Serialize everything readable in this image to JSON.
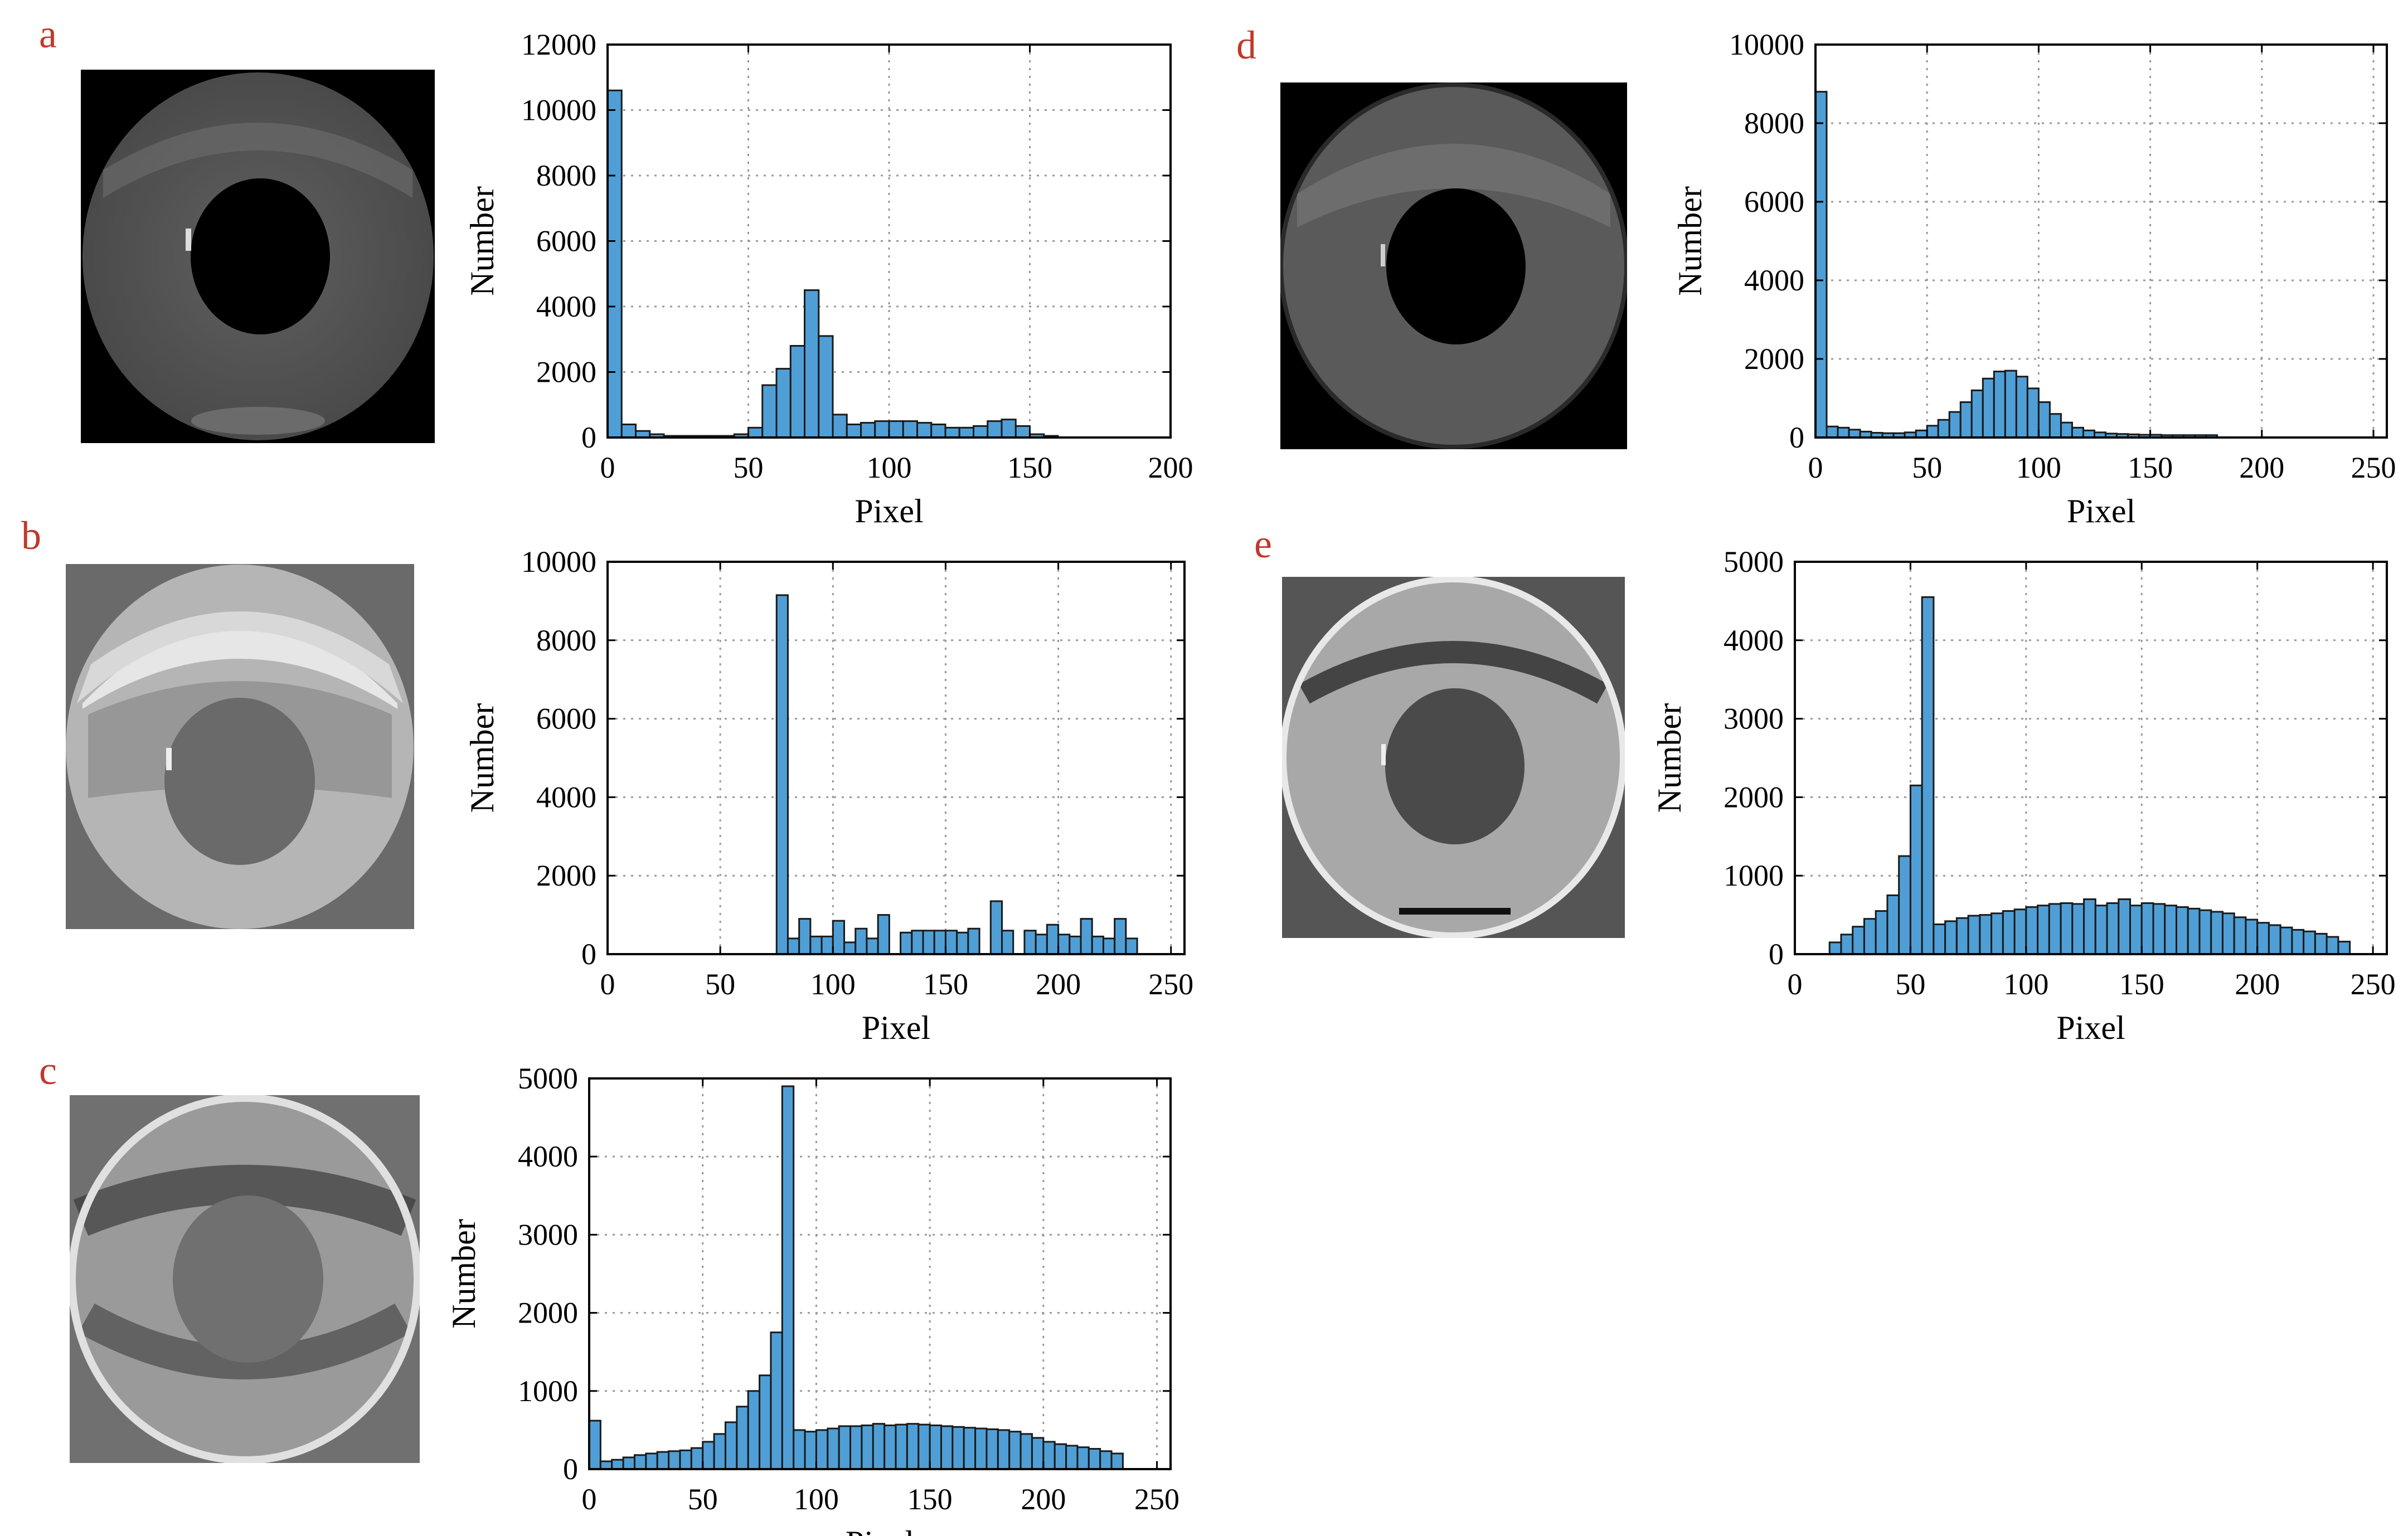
{
  "panels": [
    {
      "letter": "a"
    },
    {
      "letter": "b"
    },
    {
      "letter": "c"
    },
    {
      "letter": "d"
    },
    {
      "letter": "e"
    }
  ],
  "colors": {
    "bar_fill": "#4f9fd6",
    "bar_stroke": "#1a1a1a",
    "letter": "#c0392b"
  },
  "chart_data": [
    {
      "id": "a",
      "type": "bar",
      "title": "",
      "xlabel": "Pixel",
      "ylabel": "Number",
      "xlim": [
        0,
        200
      ],
      "ylim": [
        0,
        12000
      ],
      "grid": true,
      "bin_width": 5,
      "xticks": [
        0,
        50,
        100,
        150,
        200
      ],
      "yticks": [
        0,
        2000,
        4000,
        6000,
        8000,
        10000,
        12000
      ],
      "values": [
        10600,
        400,
        200,
        100,
        50,
        50,
        50,
        50,
        50,
        100,
        300,
        1600,
        2100,
        2800,
        4500,
        3100,
        700,
        400,
        450,
        500,
        500,
        500,
        450,
        400,
        300,
        300,
        350,
        500,
        550,
        350,
        100,
        50,
        0,
        0,
        0,
        0,
        0,
        0,
        0,
        0
      ]
    },
    {
      "id": "b",
      "type": "bar",
      "title": "",
      "xlabel": "Pixel",
      "ylabel": "Number",
      "xlim": [
        0,
        256
      ],
      "ylim": [
        0,
        10000
      ],
      "grid": true,
      "bin_width": 5,
      "xticks": [
        0,
        50,
        100,
        150,
        200,
        250
      ],
      "yticks": [
        0,
        2000,
        4000,
        6000,
        8000,
        10000
      ],
      "values": [
        0,
        0,
        0,
        0,
        0,
        0,
        0,
        0,
        0,
        0,
        0,
        0,
        0,
        0,
        0,
        9150,
        400,
        900,
        450,
        450,
        850,
        300,
        650,
        400,
        1000,
        0,
        550,
        600,
        600,
        600,
        600,
        550,
        650,
        0,
        1350,
        600,
        0,
        600,
        500,
        750,
        500,
        450,
        900,
        450,
        400,
        900,
        400
      ]
    },
    {
      "id": "c",
      "type": "bar",
      "title": "",
      "xlabel": "Pixel",
      "ylabel": "Number",
      "xlim": [
        0,
        256
      ],
      "ylim": [
        0,
        5000
      ],
      "grid": true,
      "bin_width": 5,
      "xticks": [
        0,
        50,
        100,
        150,
        200,
        250
      ],
      "yticks": [
        0,
        1000,
        2000,
        3000,
        4000,
        5000
      ],
      "values": [
        620,
        100,
        120,
        150,
        180,
        200,
        220,
        230,
        240,
        270,
        350,
        450,
        600,
        800,
        1000,
        1200,
        1750,
        4900,
        500,
        480,
        500,
        520,
        550,
        550,
        560,
        580,
        560,
        570,
        580,
        570,
        560,
        550,
        540,
        530,
        520,
        510,
        500,
        480,
        450,
        400,
        350,
        320,
        300,
        280,
        260,
        230,
        200
      ]
    },
    {
      "id": "d",
      "type": "bar",
      "title": "",
      "xlabel": "Pixel",
      "ylabel": "Number",
      "xlim": [
        0,
        256
      ],
      "ylim": [
        0,
        10000
      ],
      "grid": true,
      "bin_width": 5,
      "xticks": [
        0,
        50,
        100,
        150,
        200,
        250
      ],
      "yticks": [
        0,
        2000,
        4000,
        6000,
        8000,
        10000
      ],
      "values": [
        8800,
        280,
        250,
        200,
        150,
        120,
        110,
        110,
        130,
        180,
        300,
        450,
        650,
        900,
        1200,
        1500,
        1680,
        1700,
        1550,
        1250,
        900,
        600,
        380,
        250,
        180,
        130,
        100,
        90,
        80,
        70,
        70,
        60,
        60,
        60,
        60,
        60,
        0,
        0,
        0,
        0,
        0,
        0,
        0,
        0,
        0,
        0,
        0,
        0,
        0,
        0,
        0
      ]
    },
    {
      "id": "e",
      "type": "bar",
      "title": "",
      "xlabel": "Pixel",
      "ylabel": "Number",
      "xlim": [
        0,
        256
      ],
      "ylim": [
        0,
        5000
      ],
      "grid": true,
      "bin_width": 5,
      "xticks": [
        0,
        50,
        100,
        150,
        200,
        250
      ],
      "yticks": [
        0,
        1000,
        2000,
        3000,
        4000,
        5000
      ],
      "values": [
        0,
        0,
        0,
        150,
        250,
        350,
        450,
        550,
        750,
        1250,
        2150,
        4550,
        380,
        420,
        460,
        490,
        500,
        520,
        550,
        570,
        600,
        620,
        640,
        650,
        640,
        700,
        620,
        650,
        700,
        620,
        650,
        640,
        620,
        600,
        580,
        560,
        540,
        520,
        470,
        440,
        400,
        370,
        340,
        310,
        290,
        260,
        220,
        160
      ]
    }
  ]
}
